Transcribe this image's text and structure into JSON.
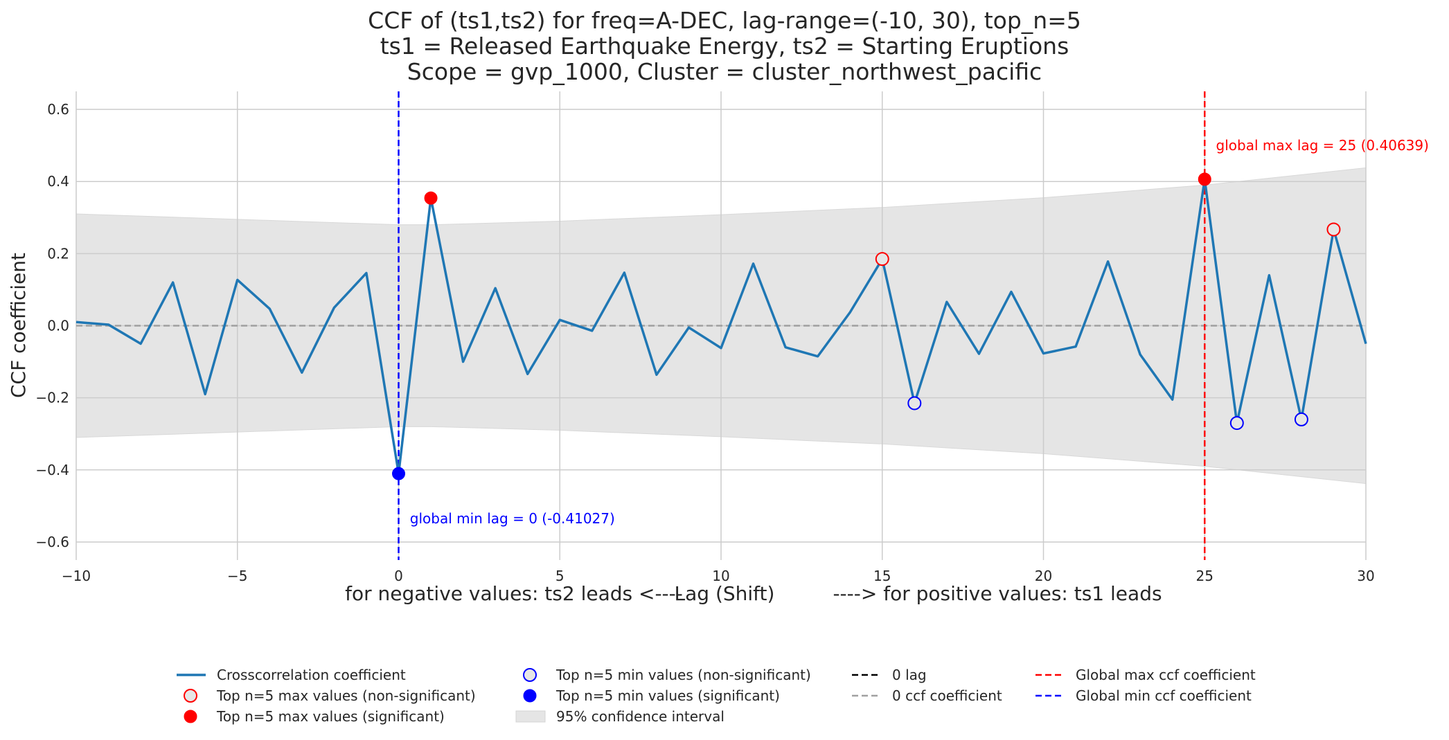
{
  "chart_data": {
    "type": "line",
    "title_lines": [
      "CCF of (ts1,ts2) for freq=A-DEC, lag-range=(-10, 30), top_n=5",
      "ts1 = Released Earthquake Energy, ts2 = Starting Eruptions",
      "Scope = gvp_1000, Cluster = cluster_northwest_pacific"
    ],
    "ylabel": "CCF coefficient",
    "xlabel": {
      "left": "for negative values: ts2 leads <----",
      "center": "Lag (Shift)",
      "right": "----> for positive values: ts1 leads"
    },
    "xlim": [
      -10,
      30
    ],
    "ylim": [
      -0.65,
      0.65
    ],
    "xticks": [
      -10,
      -5,
      0,
      5,
      10,
      15,
      20,
      25,
      30
    ],
    "xtick_labels": [
      "−10",
      "−5",
      "0",
      "5",
      "10",
      "15",
      "20",
      "25",
      "30"
    ],
    "yticks": [
      -0.6,
      -0.4,
      -0.2,
      0.0,
      0.2,
      0.4,
      0.6
    ],
    "ytick_labels": [
      "−0.6",
      "−0.4",
      "−0.2",
      "0.0",
      "0.2",
      "0.4",
      "0.6"
    ],
    "grid": true,
    "series": [
      {
        "name": "Crosscorrelation coefficient",
        "color": "#1f77b4",
        "x": [
          -10,
          -9,
          -8,
          -7,
          -6,
          -5,
          -4,
          -3,
          -2,
          -1,
          0,
          1,
          2,
          3,
          4,
          5,
          6,
          7,
          8,
          9,
          10,
          11,
          12,
          13,
          14,
          15,
          16,
          17,
          18,
          19,
          20,
          21,
          22,
          23,
          24,
          25,
          26,
          27,
          28,
          29,
          30
        ],
        "y": [
          0.01,
          0.003,
          -0.05,
          0.12,
          -0.19,
          0.127,
          0.047,
          -0.13,
          0.05,
          0.146,
          -0.41027,
          0.354,
          -0.1,
          0.104,
          -0.134,
          0.016,
          -0.014,
          0.147,
          -0.136,
          -0.005,
          -0.062,
          0.172,
          -0.06,
          -0.085,
          0.037,
          0.185,
          -0.215,
          0.066,
          -0.078,
          0.094,
          -0.077,
          -0.058,
          0.178,
          -0.08,
          -0.205,
          0.40639,
          -0.27,
          0.14,
          -0.26,
          0.267,
          -0.05
        ]
      }
    ],
    "confidence_interval": {
      "name": "95% confidence interval",
      "color": "#e5e5e5",
      "x": [
        -10,
        -5,
        0,
        1,
        5,
        10,
        15,
        20,
        25,
        30
      ],
      "upper": [
        0.31,
        0.295,
        0.28,
        0.28,
        0.29,
        0.308,
        0.328,
        0.355,
        0.39,
        0.438
      ],
      "lower": [
        -0.31,
        -0.295,
        -0.28,
        -0.28,
        -0.29,
        -0.308,
        -0.328,
        -0.355,
        -0.39,
        -0.438
      ]
    },
    "markers": {
      "max_significant": {
        "name": "Top n=5 max values (significant)",
        "color": "#ff0000",
        "points": [
          [
            1,
            0.354
          ],
          [
            25,
            0.40639
          ]
        ]
      },
      "max_nonsignificant": {
        "name": "Top n=5 max values (non-significant)",
        "color": "#ff0000",
        "points": [
          [
            15,
            0.185
          ],
          [
            29,
            0.267
          ]
        ]
      },
      "min_significant": {
        "name": "Top n=5 min values (significant)",
        "color": "#0000ff",
        "points": [
          [
            0,
            -0.41027
          ]
        ]
      },
      "min_nonsignificant": {
        "name": "Top n=5 min values (non-significant)",
        "color": "#0000ff",
        "points": [
          [
            16,
            -0.215
          ],
          [
            26,
            -0.27
          ],
          [
            28,
            -0.26
          ]
        ]
      }
    },
    "reference_lines": {
      "zero_lag": {
        "name": "0 lag",
        "color": "#000000"
      },
      "zero_ccf": {
        "name": "0 ccf coefficient",
        "color": "#a0a0a0",
        "y": 0
      },
      "global_max": {
        "name": "Global max ccf coefficient",
        "color": "#ff0000",
        "x": 25
      },
      "global_min": {
        "name": "Global min ccf coefficient",
        "color": "#0000ff",
        "x": 0
      }
    },
    "annotations": [
      {
        "text": "global max lag = 25 (0.40639)",
        "color": "#ff0000",
        "x": 25.35,
        "y": 0.5
      },
      {
        "text": "global min lag = 0 (-0.41027)",
        "color": "#0000ff",
        "x": 0.35,
        "y": -0.535
      }
    ],
    "legend": {
      "placement": "bottom-center",
      "items": [
        {
          "label": "Crosscorrelation coefficient",
          "kind": "line",
          "color": "#1f77b4"
        },
        {
          "label": "Top n=5 max values (non-significant)",
          "kind": "open-red"
        },
        {
          "label": "Top n=5 max values (significant)",
          "kind": "filled-red"
        },
        {
          "label": "Top n=5 min values (non-significant)",
          "kind": "open-blue"
        },
        {
          "label": "Top n=5 min values (significant)",
          "kind": "filled-blue"
        },
        {
          "label": "95% confidence interval",
          "kind": "patch"
        },
        {
          "label": "0 lag",
          "kind": "dash-black"
        },
        {
          "label": "0 ccf coefficient",
          "kind": "dash-gray"
        },
        {
          "label": "Global max ccf coefficient",
          "kind": "dash-red"
        },
        {
          "label": "Global min ccf coefficient",
          "kind": "dash-blue"
        }
      ]
    }
  }
}
